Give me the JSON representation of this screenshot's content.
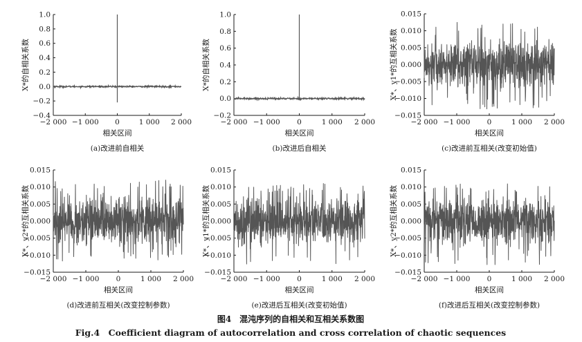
{
  "caption": {
    "cn": "图4　混沌序列的自相关和互相关系数图",
    "en": "Fig.4　Coefficient diagram of autocorrelation and cross correlation of chaotic sequences"
  },
  "colors": {
    "trace": "#555555",
    "axis": "#1a1a1a",
    "text": "#1a1a1a"
  },
  "chart_data": [
    {
      "type": "line",
      "title": "(a)改进前自相关",
      "xlabel": "相关区间",
      "ylabel": "X*的自相关系数",
      "xlim": [
        -2000,
        2000
      ],
      "ylim": [
        -0.4,
        1.0
      ],
      "xticks": [
        -2000,
        -1000,
        0,
        1000,
        2000
      ],
      "xtick_labels": [
        "−2 000",
        "−1 000",
        "0",
        "1 000",
        "2 000"
      ],
      "yticks": [
        -0.4,
        -0.2,
        0.0,
        0.2,
        0.4,
        0.6,
        0.8,
        1.0
      ],
      "ytick_labels": [
        "−0.4",
        "−0.2",
        "0.0",
        "0.2",
        "0.4",
        "0.6",
        "0.8",
        "1.0"
      ],
      "peak": {
        "x": 0,
        "y": 1.0
      },
      "noise_amplitude": 0.01,
      "dip": {
        "x": 0,
        "y": -0.22
      }
    },
    {
      "type": "line",
      "title": "(b)改进后自相关",
      "xlabel": "相关区间",
      "ylabel": "X*的自相关系数",
      "xlim": [
        -2000,
        2000
      ],
      "ylim": [
        -0.2,
        1.0
      ],
      "xticks": [
        -2000,
        -1000,
        0,
        1000,
        2000
      ],
      "xtick_labels": [
        "−2 000",
        "−1 000",
        "0",
        "1 000",
        "2 000"
      ],
      "yticks": [
        -0.2,
        0.0,
        0.2,
        0.4,
        0.6,
        0.8,
        1.0
      ],
      "ytick_labels": [
        "−0.2",
        "0.0",
        "0.2",
        "0.4",
        "0.6",
        "0.8",
        "1.0"
      ],
      "peak": {
        "x": 0,
        "y": 1.0
      },
      "noise_amplitude": 0.01
    },
    {
      "type": "line",
      "title": "(c)改进前互相关(改变初始值)",
      "xlabel": "相关区间",
      "ylabel": "X*、y1*的互相关系数",
      "xlim": [
        -2000,
        2000
      ],
      "ylim": [
        -0.015,
        0.015
      ],
      "xticks": [
        -2000,
        -1000,
        0,
        1000,
        2000
      ],
      "xtick_labels": [
        "−2 000",
        "−1 000",
        "0",
        "1 000",
        "2 000"
      ],
      "yticks": [
        -0.015,
        -0.01,
        -0.005,
        0.0,
        0.005,
        0.01,
        0.015
      ],
      "ytick_labels": [
        "−0.015",
        "−0.010",
        "−0.005",
        "0.000",
        "0.005",
        "0.010",
        "0.015"
      ],
      "noise_range": [
        -0.0135,
        0.0125
      ]
    },
    {
      "type": "line",
      "title": "(d)改进前互相关(改变控制参数)",
      "xlabel": "相关区间",
      "ylabel": "X*、y2*的互相关系数",
      "xlim": [
        -2000,
        2000
      ],
      "ylim": [
        -0.015,
        0.015
      ],
      "xticks": [
        -2000,
        -1000,
        0,
        1000,
        2000
      ],
      "xtick_labels": [
        "−2 000",
        "−1 000",
        "0",
        "1 000",
        "2 000"
      ],
      "yticks": [
        -0.015,
        -0.01,
        -0.005,
        0.0,
        0.005,
        0.01,
        0.015
      ],
      "ytick_labels": [
        "−0.015",
        "−0.010",
        "−0.005",
        "0.000",
        "0.005",
        "0.010",
        "0.015"
      ],
      "noise_range": [
        -0.0118,
        0.0122
      ]
    },
    {
      "type": "line",
      "title": "(e)改进后互相关(改变初始值)",
      "xlabel": "相关区间",
      "ylabel": "X*、y1*的互相关系数",
      "xlim": [
        -2000,
        2000
      ],
      "ylim": [
        -0.015,
        0.015
      ],
      "xticks": [
        -2000,
        -1000,
        0,
        1000,
        2000
      ],
      "xtick_labels": [
        "−2 000",
        "−1 000",
        "0",
        "1 000",
        "2 000"
      ],
      "yticks": [
        -0.015,
        -0.01,
        -0.005,
        0.0,
        0.005,
        0.01,
        0.015
      ],
      "ytick_labels": [
        "−0.015",
        "−0.010",
        "−0.005",
        "0.000",
        "0.005",
        "0.010",
        "0.015"
      ],
      "noise_range": [
        -0.0128,
        0.0113
      ]
    },
    {
      "type": "line",
      "title": "(f)改进后互相关(改变控制参数)",
      "xlabel": "相关区间",
      "ylabel": "X*、y2*的互相关系数",
      "xlim": [
        -2000,
        2000
      ],
      "ylim": [
        -0.015,
        0.015
      ],
      "xticks": [
        -2000,
        -1000,
        0,
        1000,
        2000
      ],
      "xtick_labels": [
        "−2 000",
        "−1 000",
        "0",
        "1 000",
        "2 000"
      ],
      "yticks": [
        -0.015,
        -0.01,
        -0.005,
        0.0,
        0.005,
        0.01,
        0.015
      ],
      "ytick_labels": [
        "−0.015",
        "−0.010",
        "−0.005",
        "0.000",
        "0.005",
        "0.010",
        "0.015"
      ],
      "noise_range": [
        -0.013,
        0.0113
      ]
    }
  ]
}
